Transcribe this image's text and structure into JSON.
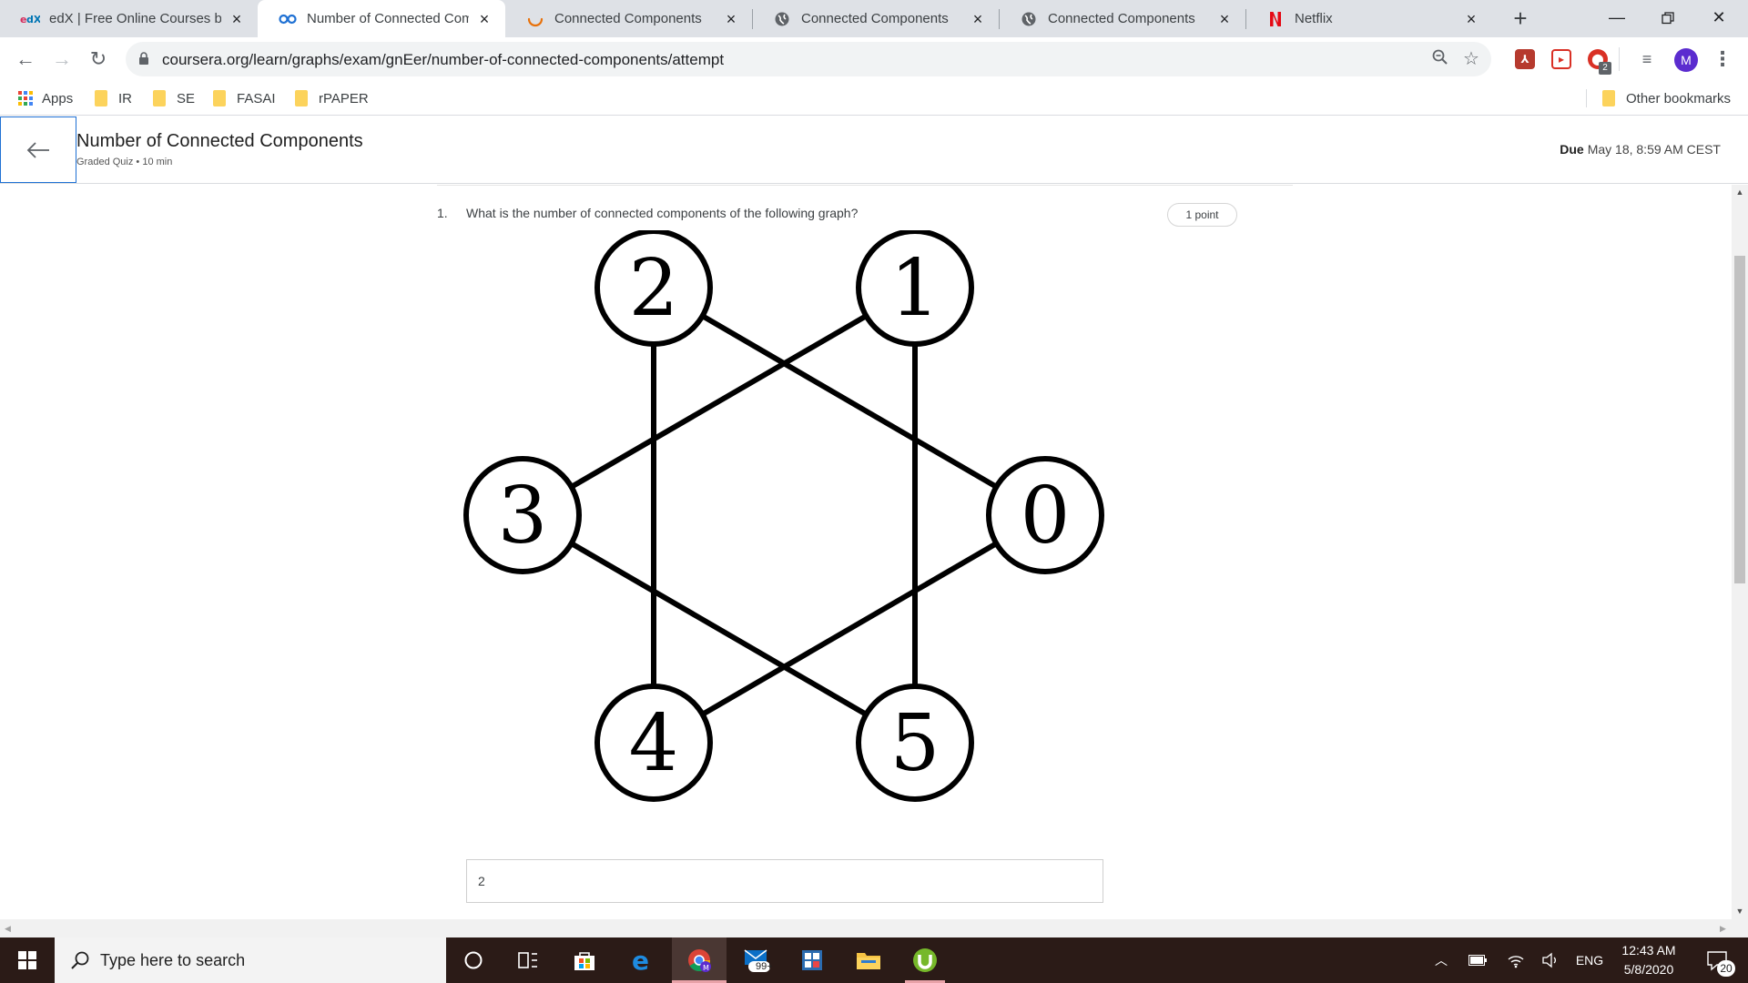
{
  "browser": {
    "tabs": [
      {
        "title": "edX | Free Online Courses by",
        "icon": "edx-logo-icon"
      },
      {
        "title": "Number of Connected Comp",
        "icon": "coursera-logo-icon"
      },
      {
        "title": "Connected Components",
        "icon": "loading-spinner-icon"
      },
      {
        "title": "Connected Components",
        "icon": "globe-icon"
      },
      {
        "title": "Connected Components",
        "icon": "globe-icon"
      },
      {
        "title": "Netflix",
        "icon": "netflix-logo-icon"
      }
    ],
    "active_tab_index": 1,
    "url": "coursera.org/learn/graphs/exam/gnEer/number-of-connected-components/attempt",
    "profile_initial": "M",
    "extension_badge": "2",
    "bookmarks": [
      "Apps",
      "IR",
      "SE",
      "FASAI",
      "rPAPER"
    ],
    "other_bookmarks": "Other bookmarks"
  },
  "quiz": {
    "title": "Number of Connected Components",
    "subtitle": "Graded Quiz • 10 min",
    "due_label": "Due",
    "due_value": "May 18, 8:59 AM CEST",
    "question_number": "1.",
    "question_text": "What is the number of connected components of the following graph?",
    "points": "1 point",
    "answer_value": "2"
  },
  "graph": {
    "nodes": [
      "0",
      "1",
      "2",
      "3",
      "4",
      "5"
    ],
    "edges": [
      [
        "2",
        "0"
      ],
      [
        "2",
        "4"
      ],
      [
        "1",
        "3"
      ],
      [
        "1",
        "5"
      ],
      [
        "3",
        "5"
      ],
      [
        "0",
        "4"
      ]
    ]
  },
  "taskbar": {
    "search_placeholder": "Type here to search",
    "mail_badge": "99+",
    "language": "ENG",
    "time": "12:43 AM",
    "date": "5/8/2020",
    "notification_count": "20"
  },
  "colors": {
    "tab_strip": "#dee1e6",
    "taskbar": "#2b1b17",
    "coursera_blue": "#1f71d4",
    "profile_purple": "#5b2ccf"
  }
}
